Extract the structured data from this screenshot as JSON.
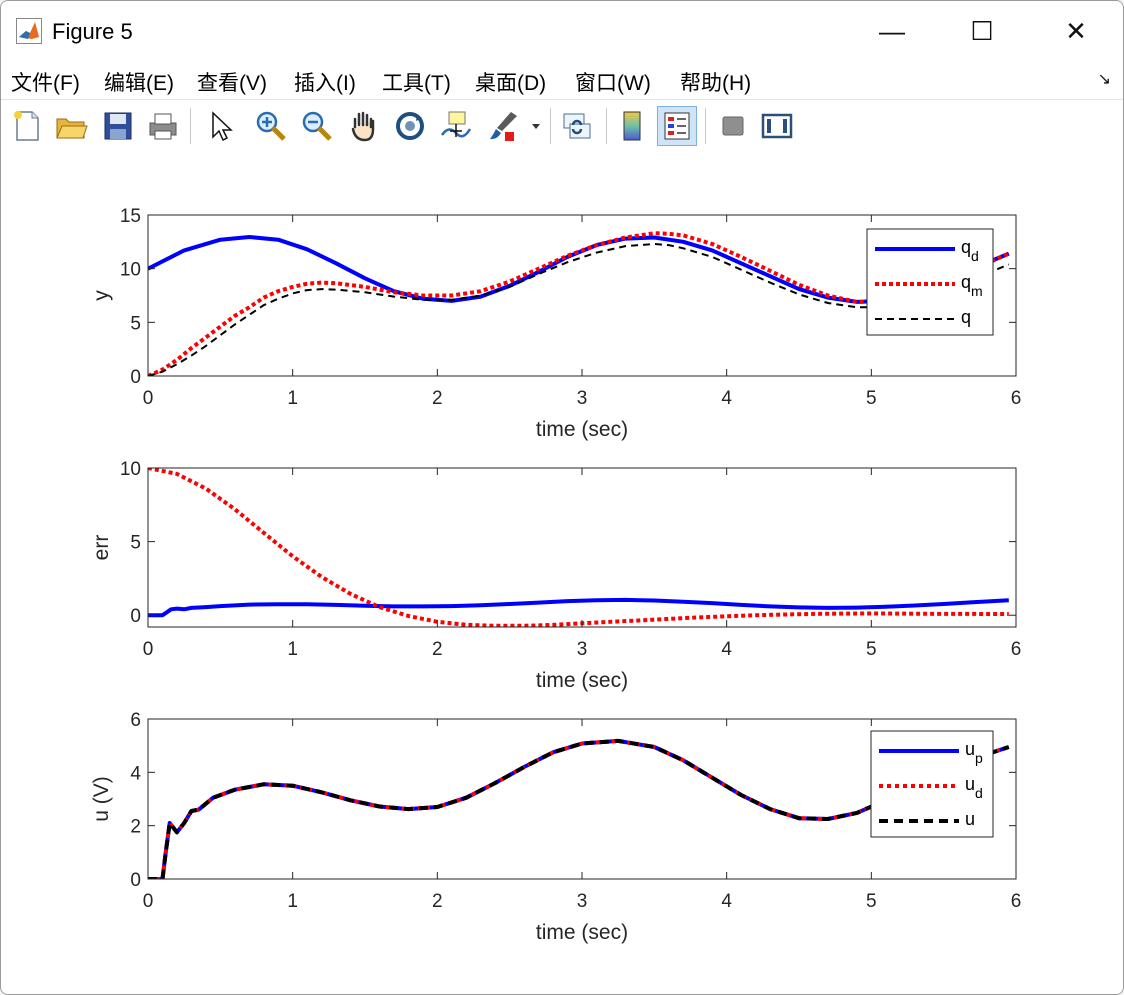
{
  "window": {
    "title": "Figure 5"
  },
  "window_controls": {
    "minimize": "—",
    "maximize": "☐",
    "close": "✕"
  },
  "menu": {
    "items": [
      "文件(F)",
      "编辑(E)",
      "查看(V)",
      "插入(I)",
      "工具(T)",
      "桌面(D)",
      "窗口(W)",
      "帮助(H)"
    ],
    "arrow": "↘"
  },
  "toolbar": {
    "buttons": [
      "new-figure-icon",
      "open-icon",
      "save-icon",
      "print-icon",
      "pointer-icon",
      "zoom-in-icon",
      "zoom-out-icon",
      "pan-icon",
      "rotate-3d-icon",
      "data-cursor-icon",
      "brush-icon",
      "link-plot-icon",
      "colorbar-icon",
      "legend-icon",
      "hide-plot-tools-icon",
      "show-plot-tools-icon"
    ]
  },
  "colors": {
    "blue": "#0000ff",
    "red": "#ff0000",
    "black": "#000000"
  },
  "chart_data": [
    {
      "type": "line",
      "xlabel": "time (sec)",
      "ylabel": "y",
      "xlim": [
        0,
        6
      ],
      "ylim": [
        0,
        15
      ],
      "xticks": [
        "0",
        "1",
        "2",
        "3",
        "4",
        "5",
        "6"
      ],
      "yticks": [
        "0",
        "5",
        "10",
        "15"
      ],
      "legend": {
        "placement": "top-right",
        "entries": [
          {
            "base": "q",
            "sub": "d"
          },
          {
            "base": "q",
            "sub": "m"
          },
          {
            "base": "q",
            "sub": ""
          }
        ]
      },
      "series": [
        {
          "name": "qd",
          "color": "#0000ff",
          "style": "solid",
          "x": [
            0,
            0.25,
            0.5,
            0.7,
            0.9,
            1.1,
            1.3,
            1.5,
            1.7,
            1.9,
            2.1,
            2.3,
            2.5,
            2.7,
            2.9,
            3.1,
            3.3,
            3.5,
            3.7,
            3.9,
            4.1,
            4.3,
            4.5,
            4.7,
            4.9,
            5.1,
            5.3,
            5.5,
            5.7,
            5.95
          ],
          "y": [
            10,
            11.7,
            12.7,
            12.95,
            12.7,
            11.8,
            10.5,
            9.1,
            7.9,
            7.2,
            7,
            7.4,
            8.4,
            9.7,
            11.1,
            12.2,
            12.8,
            12.9,
            12.5,
            11.7,
            10.5,
            9.3,
            8.1,
            7.3,
            6.9,
            7,
            7.6,
            8.7,
            10,
            11.4
          ]
        },
        {
          "name": "qm",
          "color": "#ff0000",
          "style": "dotted",
          "x": [
            0,
            0.1,
            0.2,
            0.3,
            0.4,
            0.5,
            0.6,
            0.7,
            0.8,
            0.9,
            1.0,
            1.1,
            1.2,
            1.3,
            1.5,
            1.7,
            1.9,
            2.1,
            2.3,
            2.5,
            2.7,
            2.9,
            3.1,
            3.3,
            3.5,
            3.6,
            3.7,
            3.9,
            4.1,
            4.3,
            4.5,
            4.7,
            4.9,
            5.1,
            5.3,
            5.5,
            5.7,
            5.95
          ],
          "y": [
            0,
            0.6,
            1.5,
            2.6,
            3.6,
            4.6,
            5.6,
            6.4,
            7.3,
            7.9,
            8.3,
            8.6,
            8.7,
            8.65,
            8.3,
            7.8,
            7.5,
            7.5,
            7.9,
            8.8,
            10,
            11.2,
            12.2,
            12.9,
            13.3,
            13.25,
            13.1,
            12.3,
            11.1,
            9.8,
            8.5,
            7.5,
            6.9,
            6.9,
            7.4,
            8.5,
            9.9,
            11.4
          ]
        },
        {
          "name": "q",
          "color": "#000000",
          "style": "dashed",
          "x": [
            0,
            0.1,
            0.2,
            0.3,
            0.4,
            0.5,
            0.6,
            0.7,
            0.8,
            0.9,
            1.0,
            1.1,
            1.2,
            1.3,
            1.5,
            1.7,
            1.9,
            2.1,
            2.3,
            2.5,
            2.7,
            2.9,
            3.1,
            3.3,
            3.5,
            3.6,
            3.7,
            3.9,
            4.1,
            4.3,
            4.5,
            4.7,
            4.9,
            5.1,
            5.3,
            5.5,
            5.7,
            5.95
          ],
          "y": [
            0,
            0.4,
            1.1,
            1.9,
            2.8,
            3.8,
            4.8,
            5.7,
            6.6,
            7.2,
            7.7,
            8,
            8.1,
            8.05,
            7.8,
            7.4,
            7.1,
            7.1,
            7.5,
            8.3,
            9.5,
            10.6,
            11.5,
            12.1,
            12.3,
            12.2,
            11.9,
            11.1,
            9.9,
            8.7,
            7.6,
            6.8,
            6.4,
            6.4,
            6.9,
            7.8,
            9,
            10.4
          ]
        }
      ]
    },
    {
      "type": "line",
      "xlabel": "time (sec)",
      "ylabel": "err",
      "xlim": [
        0,
        6
      ],
      "ylim": [
        -0.8,
        10
      ],
      "xticks": [
        "0",
        "1",
        "2",
        "3",
        "4",
        "5",
        "6"
      ],
      "yticks": [
        "0",
        "5",
        "10"
      ],
      "series": [
        {
          "name": "blue",
          "color": "#0000ff",
          "style": "solid",
          "x": [
            0,
            0.1,
            0.13,
            0.16,
            0.2,
            0.25,
            0.3,
            0.4,
            0.5,
            0.7,
            0.9,
            1.1,
            1.3,
            1.5,
            1.7,
            1.9,
            2.1,
            2.3,
            2.5,
            2.7,
            2.9,
            3.1,
            3.3,
            3.5,
            3.7,
            3.9,
            4.1,
            4.3,
            4.5,
            4.7,
            4.9,
            5.1,
            5.3,
            5.5,
            5.7,
            5.95
          ],
          "y": [
            0,
            0,
            0.2,
            0.4,
            0.45,
            0.4,
            0.5,
            0.55,
            0.62,
            0.72,
            0.75,
            0.74,
            0.7,
            0.65,
            0.6,
            0.6,
            0.62,
            0.68,
            0.76,
            0.86,
            0.96,
            1.02,
            1.04,
            1,
            0.92,
            0.82,
            0.7,
            0.6,
            0.53,
            0.5,
            0.52,
            0.58,
            0.66,
            0.76,
            0.88,
            1.02
          ]
        },
        {
          "name": "red",
          "color": "#ff0000",
          "style": "dotted",
          "x": [
            0,
            0.2,
            0.4,
            0.6,
            0.8,
            1.0,
            1.2,
            1.4,
            1.6,
            1.8,
            2.0,
            2.2,
            2.4,
            2.6,
            2.8,
            3.0,
            3.2,
            3.4,
            3.6,
            3.8,
            4.0,
            4.2,
            4.4,
            4.6,
            4.8,
            5.0,
            5.2,
            5.4,
            5.6,
            5.95
          ],
          "y": [
            10,
            9.6,
            8.6,
            7.2,
            5.6,
            4,
            2.6,
            1.45,
            0.55,
            -0.05,
            -0.45,
            -0.65,
            -0.72,
            -0.72,
            -0.66,
            -0.55,
            -0.45,
            -0.35,
            -0.25,
            -0.15,
            -0.07,
            0,
            0.05,
            0.09,
            0.11,
            0.12,
            0.11,
            0.1,
            0.09,
            0.08
          ]
        }
      ]
    },
    {
      "type": "line",
      "xlabel": "time (sec)",
      "ylabel": "u (V)",
      "xlim": [
        0,
        6
      ],
      "ylim": [
        0,
        6
      ],
      "xticks": [
        "0",
        "1",
        "2",
        "3",
        "4",
        "5",
        "6"
      ],
      "yticks": [
        "0",
        "2",
        "4",
        "6"
      ],
      "legend": {
        "placement": "top-right",
        "entries": [
          {
            "base": "u",
            "sub": "p"
          },
          {
            "base": "u",
            "sub": "d"
          },
          {
            "base": "u",
            "sub": ""
          }
        ]
      },
      "series": [
        {
          "name": "up",
          "color": "#0000ff",
          "style": "solid",
          "x": [
            0,
            0.1,
            0.12,
            0.15,
            0.2,
            0.25,
            0.3,
            0.35,
            0.45,
            0.6,
            0.8,
            1.0,
            1.2,
            1.4,
            1.6,
            1.8,
            2.0,
            2.2,
            2.4,
            2.6,
            2.8,
            3.0,
            3.25,
            3.5,
            3.7,
            3.9,
            4.1,
            4.3,
            4.5,
            4.7,
            4.9,
            5.1,
            5.3,
            5.5,
            5.7,
            5.95
          ],
          "y": [
            0,
            0,
            0.9,
            2.1,
            1.75,
            2.1,
            2.55,
            2.6,
            3.05,
            3.35,
            3.55,
            3.5,
            3.25,
            2.95,
            2.72,
            2.62,
            2.7,
            3.05,
            3.6,
            4.2,
            4.75,
            5.08,
            5.18,
            4.95,
            4.45,
            3.8,
            3.15,
            2.62,
            2.28,
            2.25,
            2.48,
            2.95,
            3.5,
            4.05,
            4.5,
            4.95
          ]
        },
        {
          "name": "ud",
          "color": "#ff0000",
          "style": "dotted",
          "x": [
            0,
            0.1,
            0.12,
            0.15,
            0.2,
            0.25,
            0.3,
            0.35,
            0.45,
            0.6,
            0.8,
            1.0,
            1.2,
            1.4,
            1.6,
            1.8,
            2.0,
            2.2,
            2.4,
            2.6,
            2.8,
            3.0,
            3.25,
            3.5,
            3.7,
            3.9,
            4.1,
            4.3,
            4.5,
            4.7,
            4.9,
            5.1,
            5.3,
            5.5,
            5.7,
            5.95
          ],
          "y": [
            0,
            0,
            0.9,
            2.1,
            1.75,
            2.1,
            2.55,
            2.6,
            3.05,
            3.35,
            3.55,
            3.5,
            3.25,
            2.95,
            2.72,
            2.62,
            2.7,
            3.05,
            3.6,
            4.2,
            4.75,
            5.08,
            5.18,
            4.95,
            4.45,
            3.8,
            3.15,
            2.62,
            2.28,
            2.25,
            2.48,
            2.95,
            3.5,
            4.05,
            4.5,
            4.95
          ]
        },
        {
          "name": "u",
          "color": "#000000",
          "style": "dashed",
          "x": [
            0,
            0.1,
            0.12,
            0.15,
            0.2,
            0.25,
            0.3,
            0.35,
            0.45,
            0.6,
            0.8,
            1.0,
            1.2,
            1.4,
            1.6,
            1.8,
            2.0,
            2.2,
            2.4,
            2.6,
            2.8,
            3.0,
            3.25,
            3.5,
            3.7,
            3.9,
            4.1,
            4.3,
            4.5,
            4.7,
            4.9,
            5.1,
            5.3,
            5.5,
            5.7,
            5.95
          ],
          "y": [
            0,
            0,
            0.9,
            2.1,
            1.75,
            2.1,
            2.55,
            2.6,
            3.05,
            3.35,
            3.55,
            3.5,
            3.25,
            2.95,
            2.72,
            2.62,
            2.7,
            3.05,
            3.6,
            4.2,
            4.75,
            5.08,
            5.18,
            4.95,
            4.45,
            3.8,
            3.15,
            2.62,
            2.28,
            2.25,
            2.48,
            2.95,
            3.5,
            4.05,
            4.5,
            4.95
          ]
        }
      ]
    }
  ]
}
